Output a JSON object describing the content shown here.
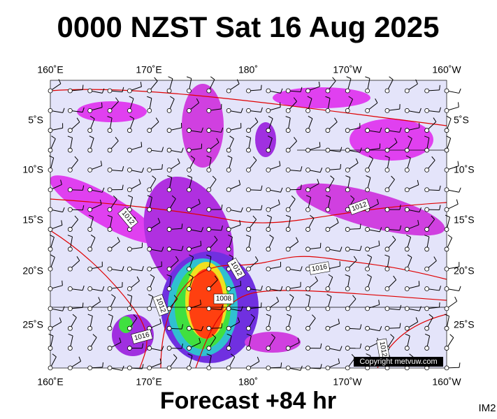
{
  "title": "0000 NZST Sat 16 Aug 2025",
  "top_labels": [
    "160˚E",
    "170˚E",
    "180˚",
    "170˚W",
    "160˚W"
  ],
  "bottom_labels": [
    "160˚E",
    "170˚E",
    "180˚",
    "170˚W",
    "160˚W"
  ],
  "left_labels": [
    "5˚S",
    "10˚S",
    "15˚S",
    "20˚S",
    "25˚S"
  ],
  "right_labels": [
    "5˚S",
    "10˚S",
    "15˚S",
    "20˚S",
    "25˚S"
  ],
  "isobar_labels": [
    "1012",
    "1012",
    "1012",
    "1016",
    "1008",
    "1012",
    "1016",
    "1012"
  ],
  "copyright": "Copyright metvuw.com",
  "footer": "Forecast +84 hr",
  "corner": "IM2"
}
